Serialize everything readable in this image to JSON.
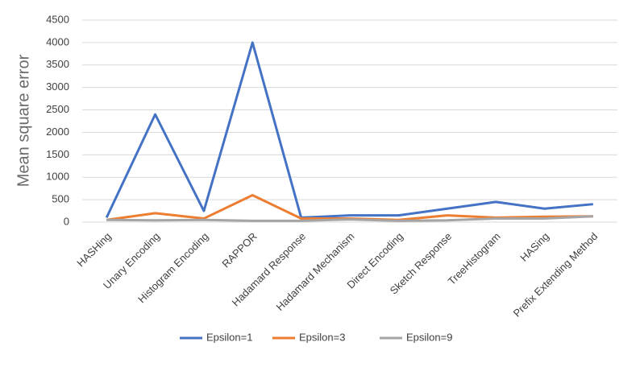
{
  "chart_data": {
    "type": "line",
    "y_label": "Mean square error",
    "categories": [
      "HASHing",
      "Unary Encoding",
      "Histogram Encoding",
      "RAPPOR",
      "Hadamard Response",
      "Hadamard Mechanism",
      "Direct Encoding",
      "Sketch Response",
      "TreeHistogram",
      "HASing",
      "Prefix Extending Method"
    ],
    "series": [
      {
        "name": "Epsilon=1",
        "color": "#4472c4",
        "values": [
          100,
          2400,
          250,
          4000,
          100,
          150,
          150,
          300,
          450,
          300,
          400
        ]
      },
      {
        "name": "Epsilon=3",
        "color": "#ed7d31",
        "values": [
          50,
          200,
          80,
          600,
          80,
          80,
          50,
          150,
          100,
          120,
          130
        ]
      },
      {
        "name": "Epsilon=9",
        "color": "#a5a5a5",
        "values": [
          50,
          40,
          50,
          30,
          30,
          60,
          30,
          40,
          80,
          80,
          130
        ]
      }
    ],
    "ylim": [
      0,
      4500
    ],
    "yticks": [
      0,
      500,
      1000,
      1500,
      2000,
      2500,
      3000,
      3500,
      4000,
      4500
    ],
    "grid": true,
    "legend": "bottom"
  }
}
